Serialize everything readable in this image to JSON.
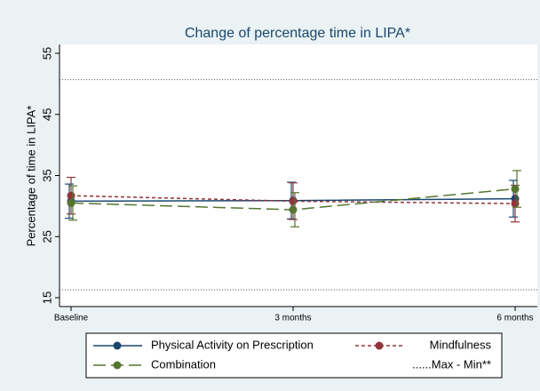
{
  "chart_data": {
    "type": "line",
    "title": "Change of percentage time in LIPA*",
    "y_label": "Percentage of time in LIPA*",
    "categories": [
      "Baseline",
      "3 months",
      "6 months"
    ],
    "series": [
      {
        "name": "Physical Activity on Prescription",
        "color": "#1a476f",
        "line_style": "solid",
        "values": [
          30.8,
          30.9,
          31.2
        ],
        "errors": [
          2.8,
          3.0,
          3.0
        ]
      },
      {
        "name": "Mindfulness",
        "color": "#90353b",
        "line_style": "dotted",
        "values": [
          31.7,
          30.8,
          30.4
        ],
        "errors": [
          3.0,
          3.0,
          3.0
        ]
      },
      {
        "name": "Combination",
        "color": "#55752f",
        "line_style": "dashed",
        "values": [
          30.5,
          29.4,
          32.8
        ],
        "errors": [
          2.8,
          2.8,
          3.0
        ]
      }
    ],
    "reference_lines": [
      50.7,
      16.3
    ],
    "reference_label": "......Max - Min**",
    "ylim": [
      15,
      55
    ],
    "yticks": [
      15,
      25,
      35,
      45,
      55
    ],
    "grid": false
  }
}
